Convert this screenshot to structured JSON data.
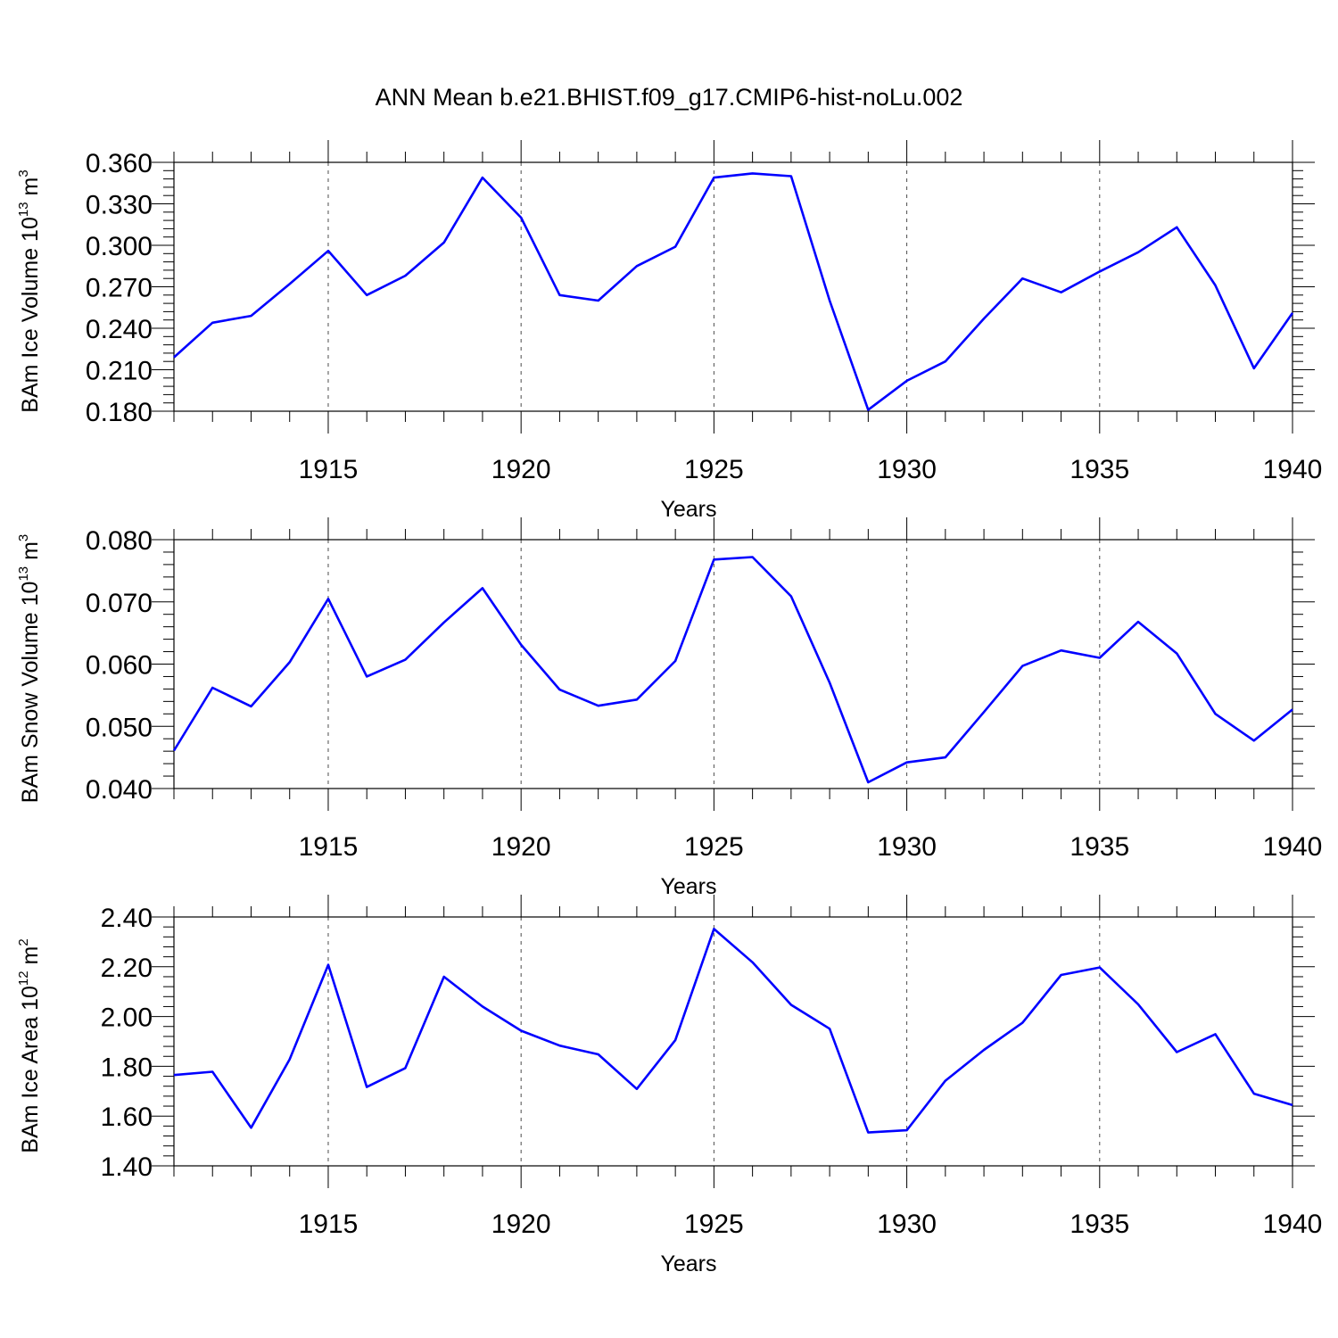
{
  "title": "ANN Mean b.e21.BHIST.f09_g17.CMIP6-hist-noLu.002",
  "chart_data": [
    {
      "type": "line",
      "ylabel_main": "BAm Ice Volume 10",
      "ylabel_exp": "13",
      "ylabel_unit": " m",
      "ylabel_unit_exp": "3",
      "xlabel": "Years",
      "xlim": [
        1911,
        1940
      ],
      "ylim": [
        0.18,
        0.36
      ],
      "yticks": [
        "0.360",
        "0.330",
        "0.300",
        "0.270",
        "0.240",
        "0.210",
        "0.180"
      ],
      "xticks": [
        "1915",
        "1920",
        "1925",
        "1930",
        "1935",
        "1940"
      ],
      "grid": "dashed vertical at major x ticks",
      "color": "#0000ff",
      "x": [
        1911,
        1912,
        1913,
        1914,
        1915,
        1916,
        1917,
        1918,
        1919,
        1920,
        1921,
        1922,
        1923,
        1924,
        1925,
        1926,
        1927,
        1928,
        1929,
        1930,
        1931,
        1932,
        1933,
        1934,
        1935,
        1936,
        1937,
        1938,
        1939,
        1940
      ],
      "values": [
        0.219,
        0.244,
        0.249,
        0.272,
        0.296,
        0.264,
        0.278,
        0.302,
        0.349,
        0.32,
        0.264,
        0.26,
        0.285,
        0.299,
        0.349,
        0.352,
        0.35,
        0.26,
        0.181,
        0.202,
        0.216,
        0.247,
        0.276,
        0.266,
        0.281,
        0.295,
        0.313,
        0.271,
        0.211,
        0.251
      ]
    },
    {
      "type": "line",
      "ylabel_main": "BAm Snow Volume 10",
      "ylabel_exp": "13",
      "ylabel_unit": " m",
      "ylabel_unit_exp": "3",
      "xlabel": "Years",
      "xlim": [
        1911,
        1940
      ],
      "ylim": [
        0.04,
        0.08
      ],
      "yticks": [
        "0.080",
        "0.070",
        "0.060",
        "0.050",
        "0.040"
      ],
      "xticks": [
        "1915",
        "1920",
        "1925",
        "1930",
        "1935",
        "1940"
      ],
      "grid": "dashed vertical at major x ticks",
      "color": "#0000ff",
      "x": [
        1911,
        1912,
        1913,
        1914,
        1915,
        1916,
        1917,
        1918,
        1919,
        1920,
        1921,
        1922,
        1923,
        1924,
        1925,
        1926,
        1927,
        1928,
        1929,
        1930,
        1931,
        1932,
        1933,
        1934,
        1935,
        1936,
        1937,
        1938,
        1939,
        1940
      ],
      "values": [
        0.0461,
        0.0562,
        0.0532,
        0.0603,
        0.0705,
        0.058,
        0.0607,
        0.0667,
        0.0722,
        0.0631,
        0.0559,
        0.0533,
        0.0543,
        0.0605,
        0.0768,
        0.0772,
        0.0709,
        0.057,
        0.041,
        0.0442,
        0.045,
        0.0523,
        0.0597,
        0.0622,
        0.061,
        0.0668,
        0.0617,
        0.052,
        0.0477,
        0.0527
      ]
    },
    {
      "type": "line",
      "ylabel_main": "BAm Ice Area 10",
      "ylabel_exp": "12",
      "ylabel_unit": " m",
      "ylabel_unit_exp": "2",
      "xlabel": "Years",
      "xlim": [
        1911,
        1940
      ],
      "ylim": [
        1.4,
        2.4
      ],
      "yticks": [
        "2.40",
        "2.20",
        "2.00",
        "1.80",
        "1.60",
        "1.40"
      ],
      "xticks": [
        "1915",
        "1920",
        "1925",
        "1930",
        "1935",
        "1940"
      ],
      "grid": "dashed vertical at major x ticks",
      "color": "#0000ff",
      "x": [
        1911,
        1912,
        1913,
        1914,
        1915,
        1916,
        1917,
        1918,
        1919,
        1920,
        1921,
        1922,
        1923,
        1924,
        1925,
        1926,
        1927,
        1928,
        1929,
        1930,
        1931,
        1932,
        1933,
        1934,
        1935,
        1936,
        1937,
        1938,
        1939,
        1940
      ],
      "values": [
        1.765,
        1.778,
        1.553,
        1.828,
        2.208,
        1.717,
        1.793,
        2.16,
        2.04,
        1.943,
        1.883,
        1.848,
        1.709,
        1.905,
        2.352,
        2.218,
        2.047,
        1.951,
        1.534,
        1.543,
        1.742,
        1.866,
        1.975,
        2.167,
        2.197,
        2.049,
        1.857,
        1.929,
        1.69,
        1.644
      ]
    }
  ]
}
